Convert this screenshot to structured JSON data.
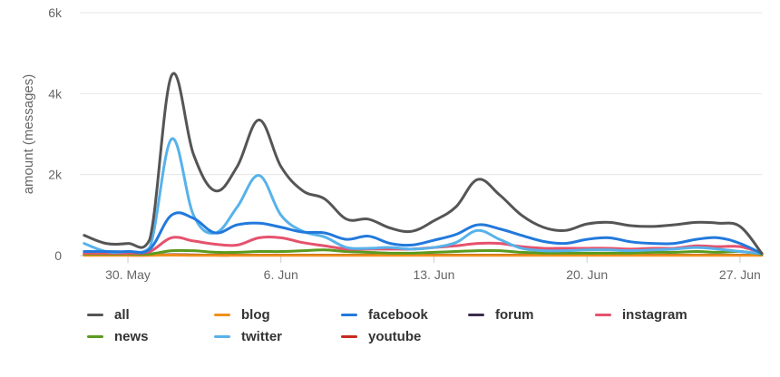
{
  "chart_data": {
    "type": "line",
    "title": "",
    "xlabel": "",
    "ylabel": "amount (messages)",
    "y_ticks": [
      {
        "value": 0,
        "label": "0"
      },
      {
        "value": 2000,
        "label": "2k"
      },
      {
        "value": 4000,
        "label": "4k"
      },
      {
        "value": 6000,
        "label": "6k"
      }
    ],
    "x_ticks": [
      {
        "value": 2,
        "label": "30. May"
      },
      {
        "value": 9,
        "label": "6. Jun"
      },
      {
        "value": 16,
        "label": "13. Jun"
      },
      {
        "value": 23,
        "label": "20. Jun"
      },
      {
        "value": 30,
        "label": "27. Jun"
      }
    ],
    "ylim": [
      0,
      6000
    ],
    "xlim": [
      -0.2,
      31
    ],
    "x": [
      0,
      1,
      2,
      3,
      4,
      5,
      6,
      7,
      8,
      9,
      10,
      11,
      12,
      13,
      14,
      15,
      16,
      17,
      18,
      19,
      20,
      21,
      22,
      23,
      24,
      25,
      26,
      27,
      28,
      29,
      30,
      31
    ],
    "grid": true,
    "legend_position": "bottom",
    "series": [
      {
        "name": "all",
        "color": "#555555",
        "values": [
          500,
          300,
          300,
          400,
          4450,
          2500,
          1600,
          2200,
          3350,
          2200,
          1600,
          1400,
          900,
          900,
          680,
          600,
          860,
          1200,
          1880,
          1500,
          1000,
          700,
          620,
          780,
          820,
          740,
          720,
          760,
          820,
          800,
          720,
          50
        ]
      },
      {
        "name": "blog",
        "color": "#f28f1c",
        "values": [
          5,
          5,
          5,
          5,
          10,
          5,
          5,
          5,
          5,
          5,
          5,
          5,
          5,
          5,
          5,
          5,
          5,
          5,
          5,
          5,
          5,
          5,
          5,
          5,
          5,
          5,
          5,
          5,
          5,
          5,
          5,
          5
        ]
      },
      {
        "name": "facebook",
        "color": "#2279dc",
        "values": [
          100,
          100,
          100,
          160,
          1000,
          920,
          560,
          760,
          800,
          700,
          580,
          560,
          400,
          480,
          300,
          260,
          380,
          520,
          760,
          660,
          500,
          350,
          300,
          400,
          440,
          340,
          300,
          300,
          400,
          440,
          300,
          50
        ]
      },
      {
        "name": "forum",
        "color": "#3b2d4e",
        "values": [
          10,
          10,
          10,
          10,
          20,
          15,
          10,
          10,
          10,
          10,
          10,
          10,
          10,
          10,
          10,
          10,
          10,
          10,
          10,
          10,
          10,
          10,
          10,
          10,
          10,
          10,
          10,
          10,
          10,
          10,
          10,
          10
        ]
      },
      {
        "name": "instagram",
        "color": "#e5526d",
        "values": [
          60,
          60,
          60,
          100,
          440,
          360,
          280,
          260,
          440,
          440,
          320,
          240,
          160,
          160,
          160,
          160,
          200,
          240,
          300,
          300,
          220,
          180,
          180,
          180,
          180,
          160,
          180,
          180,
          240,
          220,
          220,
          60
        ]
      },
      {
        "name": "news",
        "color": "#5b9a1e",
        "values": [
          40,
          40,
          40,
          40,
          120,
          120,
          80,
          80,
          100,
          100,
          120,
          140,
          100,
          80,
          60,
          60,
          80,
          100,
          120,
          120,
          80,
          60,
          60,
          60,
          60,
          60,
          80,
          80,
          100,
          80,
          100,
          30
        ]
      },
      {
        "name": "twitter",
        "color": "#57b2ea",
        "values": [
          300,
          100,
          100,
          200,
          2880,
          1000,
          560,
          1200,
          1980,
          1000,
          600,
          460,
          200,
          180,
          200,
          160,
          200,
          320,
          620,
          400,
          180,
          120,
          120,
          140,
          140,
          120,
          140,
          160,
          200,
          160,
          100,
          50
        ]
      },
      {
        "name": "youtube",
        "color": "#c8291d",
        "values": [
          10,
          10,
          10,
          10,
          20,
          15,
          10,
          10,
          10,
          10,
          10,
          10,
          10,
          10,
          10,
          10,
          10,
          10,
          10,
          10,
          10,
          10,
          10,
          10,
          10,
          10,
          10,
          10,
          10,
          10,
          10,
          10
        ]
      }
    ],
    "legend_order": [
      "all",
      "blog",
      "facebook",
      "forum",
      "instagram",
      "news",
      "twitter",
      "youtube"
    ]
  }
}
